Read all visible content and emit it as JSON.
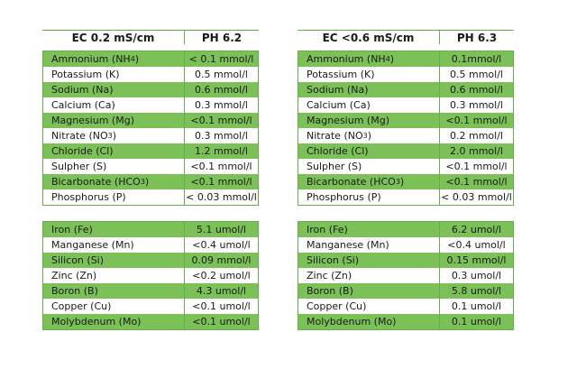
{
  "left": {
    "header": {
      "ec": "EC   0.2 mS/cm",
      "ph": "PH    6.2"
    },
    "macro": [
      {
        "name": "Ammonium (NH",
        "sub": "4",
        "tail": ")",
        "value": "< 0.1 mmol/l"
      },
      {
        "name": "Potassium (K)",
        "sub": "",
        "tail": "",
        "value": "0.5 mmol/l"
      },
      {
        "name": "Sodium (Na)",
        "sub": "",
        "tail": "",
        "value": "0.6 mmol/l"
      },
      {
        "name": "Calcium (Ca)",
        "sub": "",
        "tail": "",
        "value": "0.3 mmol/l"
      },
      {
        "name": "Magnesium (Mg)",
        "sub": "",
        "tail": "",
        "value": "<0.1 mmol/l"
      },
      {
        "name": "Nitrate (NO",
        "sub": "3",
        "tail": ")",
        "value": "0.3  mmol/l"
      },
      {
        "name": "Chloride (Cl)",
        "sub": "",
        "tail": "",
        "value": "1.2  mmol/l"
      },
      {
        "name": "Sulpher (S)",
        "sub": "",
        "tail": "",
        "value": "<0.1 mmol/l"
      },
      {
        "name": "Bicarbonate (HCO",
        "sub": "3",
        "tail": ")",
        "value": "<0.1 mmol/l"
      },
      {
        "name": "Phosphorus (P)",
        "sub": "",
        "tail": "",
        "value": "< 0.03 mmol/l"
      }
    ],
    "micro": [
      {
        "name": "Iron (Fe)",
        "value": "5.1 umol/l"
      },
      {
        "name": "Manganese (Mn)",
        "value": "<0.4 umol/l"
      },
      {
        "name": "Silicon (Si)",
        "value": "0.09 mmol/l"
      },
      {
        "name": "Zinc (Zn)",
        "value": "<0.2 umol/l"
      },
      {
        "name": "Boron (B)",
        "value": "4.3 umol/l"
      },
      {
        "name": "Copper (Cu)",
        "value": "<0.1 umol/l"
      },
      {
        "name": "Molybdenum (Mo)",
        "value": "<0.1 umol/l"
      }
    ]
  },
  "right": {
    "header": {
      "ec": "EC   <0.6 mS/cm",
      "ph": "PH    6.3"
    },
    "macro": [
      {
        "name": "Ammonium (NH",
        "sub": "4",
        "tail": ")",
        "value": "0.1mmol/l"
      },
      {
        "name": "Potassium (K)",
        "sub": "",
        "tail": "",
        "value": "0.5 mmol/l"
      },
      {
        "name": "Sodium (Na)",
        "sub": "",
        "tail": "",
        "value": "0.6 mmol/l"
      },
      {
        "name": "Calcium (Ca)",
        "sub": "",
        "tail": "",
        "value": "0.3 mmol/l"
      },
      {
        "name": "Magnesium (Mg)",
        "sub": "",
        "tail": "",
        "value": "<0.1 mmol/l"
      },
      {
        "name": "Nitrate (NO",
        "sub": "3",
        "tail": ")",
        "value": "0.2 mmol/l"
      },
      {
        "name": "Chloride (Cl)",
        "sub": "",
        "tail": "",
        "value": "2.0  mmol/l"
      },
      {
        "name": "Sulpher (S)",
        "sub": "",
        "tail": "",
        "value": "<0.1 mmol/l"
      },
      {
        "name": "Bicarbonate (HCO",
        "sub": "3",
        "tail": ")",
        "value": "<0.1 mmol/l"
      },
      {
        "name": "Phosphorus (P)",
        "sub": "",
        "tail": "",
        "value": "< 0.03 mmol/l"
      }
    ],
    "micro": [
      {
        "name": "Iron (Fe)",
        "value": "6.2 umol/l"
      },
      {
        "name": "Manganese (Mn)",
        "value": "<0.4 umol/l"
      },
      {
        "name": "Silicon (Si)",
        "value": "0.15 mmol/l"
      },
      {
        "name": "Zinc (Zn)",
        "value": "0.3 umol/l"
      },
      {
        "name": "Boron (B)",
        "value": "5.8 umol/l"
      },
      {
        "name": "Copper (Cu)",
        "value": "0.1 umol/l"
      },
      {
        "name": "Molybdenum (Mo)",
        "value": "0.1 umol/l"
      }
    ]
  },
  "colors": {
    "green": "#7cc157",
    "line": "#62b04a"
  }
}
